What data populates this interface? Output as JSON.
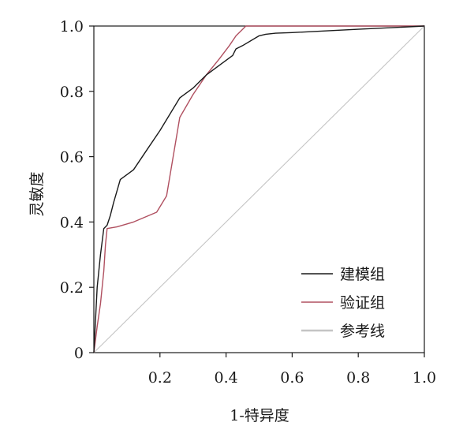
{
  "chart_data": {
    "type": "line",
    "title": "",
    "xlabel": "1-特异度",
    "ylabel": "灵敏度",
    "xlim": [
      0,
      1.0
    ],
    "ylim": [
      0,
      1.0
    ],
    "x_ticks": [
      {
        "value": 0.2,
        "label": "0.2"
      },
      {
        "value": 0.4,
        "label": "0.4"
      },
      {
        "value": 0.6,
        "label": "0.6"
      },
      {
        "value": 0.8,
        "label": "0.8"
      },
      {
        "value": 1.0,
        "label": "1.0"
      }
    ],
    "y_ticks": [
      {
        "value": 0,
        "label": "0"
      },
      {
        "value": 0.2,
        "label": "0.2"
      },
      {
        "value": 0.4,
        "label": "0.4"
      },
      {
        "value": 0.6,
        "label": "0.6"
      },
      {
        "value": 0.8,
        "label": "0.8"
      },
      {
        "value": 1.0,
        "label": "1.0"
      }
    ],
    "grid": false,
    "legend_position": "bottom-right",
    "series": [
      {
        "name": "建模组",
        "color": "#1a1a1a",
        "x": [
          0,
          0.005,
          0.01,
          0.02,
          0.03,
          0.04,
          0.05,
          0.06,
          0.08,
          0.12,
          0.16,
          0.2,
          0.26,
          0.3,
          0.34,
          0.38,
          0.42,
          0.425,
          0.43,
          0.45,
          0.5,
          0.52,
          0.55,
          0.6,
          0.7,
          0.8,
          0.9,
          1.0
        ],
        "y": [
          0,
          0.1,
          0.2,
          0.3,
          0.38,
          0.39,
          0.42,
          0.46,
          0.53,
          0.56,
          0.62,
          0.68,
          0.78,
          0.81,
          0.85,
          0.88,
          0.91,
          0.92,
          0.93,
          0.94,
          0.97,
          0.975,
          0.978,
          0.98,
          0.985,
          0.99,
          0.995,
          1.0
        ]
      },
      {
        "name": "验证组",
        "color": "#b05060",
        "x": [
          0,
          0.01,
          0.02,
          0.03,
          0.035,
          0.04,
          0.07,
          0.12,
          0.19,
          0.22,
          0.26,
          0.3,
          0.34,
          0.38,
          0.41,
          0.43,
          0.45,
          0.46,
          0.5,
          0.6,
          0.7,
          0.8,
          0.9,
          1.0
        ],
        "y": [
          0,
          0.08,
          0.15,
          0.25,
          0.33,
          0.38,
          0.385,
          0.4,
          0.43,
          0.48,
          0.72,
          0.79,
          0.85,
          0.9,
          0.94,
          0.97,
          0.99,
          1.0,
          1.0,
          1.0,
          1.0,
          1.0,
          1.0,
          1.0
        ]
      },
      {
        "name": "参考线",
        "color": "#c4c4c4",
        "x": [
          0,
          1.0
        ],
        "y": [
          0,
          1.0
        ]
      }
    ]
  }
}
